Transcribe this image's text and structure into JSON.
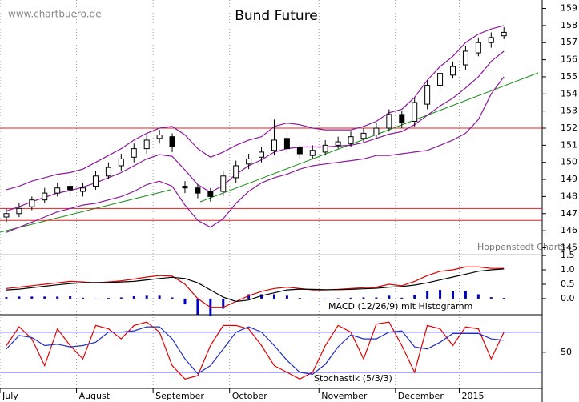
{
  "chart_data": [
    {
      "type": "candlestick",
      "title": "Bund Future",
      "annotations": [
        "www.chartbuero.de",
        "Hoppenstedt Charts"
      ],
      "categories": [
        "July",
        null,
        null,
        null,
        null,
        null,
        "August",
        null,
        null,
        null,
        null,
        null,
        "September",
        null,
        null,
        null,
        null,
        null,
        "October",
        null,
        null,
        null,
        null,
        null,
        null,
        "November",
        null,
        null,
        null,
        null,
        null,
        "December",
        null,
        null,
        null,
        null,
        "2015",
        null,
        null,
        null
      ],
      "open": [
        146.8,
        147.0,
        147.4,
        147.8,
        148.2,
        148.6,
        148.3,
        148.6,
        149.2,
        149.8,
        150.3,
        150.8,
        151.4,
        151.5,
        148.6,
        148.5,
        148.3,
        148.3,
        149.1,
        149.9,
        150.3,
        150.7,
        151.4,
        150.9,
        150.4,
        150.6,
        151.0,
        151.1,
        151.4,
        151.6,
        152.0,
        152.8,
        152.4,
        153.4,
        154.5,
        155.1,
        155.7,
        156.4,
        157.0,
        157.4
      ],
      "high": [
        147.3,
        147.6,
        148.0,
        148.5,
        148.8,
        148.9,
        148.8,
        149.5,
        150.0,
        150.5,
        151.1,
        151.6,
        151.9,
        151.7,
        148.9,
        148.7,
        148.5,
        149.5,
        150.1,
        150.5,
        150.9,
        152.5,
        151.7,
        151.0,
        151.0,
        151.3,
        151.5,
        151.8,
        152.0,
        152.3,
        153.1,
        153.0,
        153.8,
        154.8,
        155.5,
        155.9,
        156.8,
        157.3,
        157.6,
        157.9
      ],
      "low": [
        146.5,
        146.8,
        147.2,
        147.6,
        148.0,
        148.1,
        148.0,
        148.4,
        149.0,
        149.5,
        150.0,
        150.5,
        151.1,
        150.6,
        148.2,
        147.9,
        147.7,
        148.0,
        148.8,
        149.6,
        150.0,
        150.4,
        150.5,
        150.2,
        150.2,
        150.4,
        150.8,
        150.9,
        151.2,
        151.4,
        151.8,
        152.0,
        152.1,
        153.1,
        154.2,
        154.9,
        155.4,
        156.2,
        156.7,
        157.2
      ],
      "close": [
        147.0,
        147.3,
        147.8,
        148.2,
        148.5,
        148.4,
        148.5,
        149.2,
        149.7,
        150.2,
        150.8,
        151.3,
        151.6,
        150.9,
        148.5,
        148.2,
        148.0,
        149.2,
        149.8,
        150.2,
        150.6,
        151.3,
        150.8,
        150.5,
        150.7,
        151.0,
        151.2,
        151.5,
        151.7,
        152.0,
        152.8,
        152.3,
        153.5,
        154.5,
        155.2,
        155.6,
        156.5,
        157.0,
        157.3,
        157.6
      ],
      "bands": [
        {
          "color": "#8b1a9b",
          "values": [
            148.4,
            148.6,
            148.9,
            149.1,
            149.3,
            149.4,
            149.6,
            150.0,
            150.4,
            150.8,
            151.3,
            151.7,
            152.0,
            152.1,
            151.6,
            150.8,
            150.3,
            150.6,
            151.0,
            151.3,
            151.5,
            152.1,
            152.3,
            152.2,
            152.0,
            151.9,
            151.9,
            151.9,
            152.1,
            152.4,
            152.9,
            153.1,
            153.8,
            154.8,
            155.6,
            156.2,
            157.0,
            157.5,
            157.8,
            158.0
          ]
        },
        {
          "color": "#8b1a9b",
          "values": [
            147.15,
            147.4,
            147.7,
            147.95,
            148.2,
            148.35,
            148.55,
            148.8,
            149.1,
            149.4,
            149.8,
            150.2,
            150.45,
            150.35,
            149.55,
            148.7,
            148.25,
            148.65,
            149.3,
            149.8,
            150.15,
            150.6,
            150.8,
            150.9,
            150.9,
            150.9,
            150.95,
            151.0,
            151.15,
            151.4,
            151.65,
            151.8,
            152.2,
            152.75,
            153.3,
            153.75,
            154.35,
            155.0,
            155.9,
            156.5
          ]
        },
        {
          "color": "#8b1a9b",
          "values": [
            145.9,
            146.2,
            146.5,
            146.8,
            147.1,
            147.3,
            147.5,
            147.6,
            147.8,
            148.0,
            148.3,
            148.7,
            148.9,
            148.6,
            147.5,
            146.6,
            146.2,
            146.7,
            147.6,
            148.3,
            148.8,
            149.1,
            149.3,
            149.6,
            149.8,
            149.9,
            150.0,
            150.1,
            150.2,
            150.4,
            150.4,
            150.5,
            150.6,
            150.7,
            151.0,
            151.3,
            151.7,
            152.5,
            154.0,
            155.0
          ]
        }
      ],
      "hlines": [
        152.0,
        147.3,
        146.6
      ],
      "hline_color": "#e02020",
      "ylim": [
        144.6,
        159.4
      ],
      "yticks": [
        145,
        146,
        147,
        148,
        149,
        150,
        151,
        152,
        153,
        154,
        155,
        156,
        157,
        158,
        159
      ]
    },
    {
      "type": "macd",
      "label": "MACD (12/26/9) mit Histogramm",
      "series": [
        {
          "color": "#e00000",
          "values": [
            0.35,
            0.4,
            0.45,
            0.5,
            0.55,
            0.6,
            0.58,
            0.55,
            0.58,
            0.62,
            0.68,
            0.75,
            0.8,
            0.78,
            0.5,
            0.0,
            -0.3,
            -0.3,
            -0.1,
            0.1,
            0.25,
            0.35,
            0.4,
            0.35,
            0.3,
            0.3,
            0.32,
            0.35,
            0.38,
            0.4,
            0.5,
            0.45,
            0.6,
            0.8,
            0.95,
            1.0,
            1.1,
            1.1,
            1.05,
            1.05
          ]
        },
        {
          "color": "#000000",
          "values": [
            0.3,
            0.33,
            0.38,
            0.43,
            0.48,
            0.52,
            0.55,
            0.56,
            0.56,
            0.58,
            0.6,
            0.65,
            0.7,
            0.74,
            0.7,
            0.55,
            0.3,
            0.05,
            -0.1,
            -0.05,
            0.1,
            0.2,
            0.3,
            0.33,
            0.32,
            0.31,
            0.31,
            0.32,
            0.34,
            0.36,
            0.4,
            0.42,
            0.47,
            0.55,
            0.65,
            0.75,
            0.85,
            0.95,
            1.0,
            1.03
          ]
        }
      ],
      "histogram": {
        "color": "#0000c0",
        "values": [
          0.05,
          0.07,
          0.07,
          0.07,
          0.07,
          0.08,
          0.03,
          -0.01,
          0.02,
          0.04,
          0.08,
          0.1,
          0.1,
          0.04,
          -0.2,
          -0.55,
          -0.6,
          -0.35,
          0,
          0.15,
          0.15,
          0.15,
          0.1,
          0.02,
          -0.02,
          -0.01,
          0.01,
          0.03,
          0.04,
          0.04,
          0.1,
          0.03,
          0.13,
          0.25,
          0.3,
          0.25,
          0.25,
          0.15,
          0.05,
          0.02
        ]
      },
      "ylim": [
        -0.56,
        1.53
      ],
      "yticks": [
        {
          "value": 0,
          "label": "0.0"
        },
        0.5,
        {
          "value": 1,
          "label": "1.0"
        },
        1.5
      ]
    },
    {
      "type": "stochastic",
      "label": "Stochastik (5/3/3)",
      "series": [
        {
          "color": "#e00000",
          "values": [
            60,
            88,
            70,
            30,
            85,
            60,
            40,
            90,
            85,
            70,
            90,
            95,
            80,
            30,
            10,
            15,
            60,
            90,
            90,
            85,
            60,
            30,
            20,
            10,
            20,
            60,
            90,
            80,
            40,
            92,
            95,
            60,
            20,
            90,
            85,
            60,
            88,
            85,
            40,
            80
          ]
        },
        {
          "color": "#2030c0",
          "values": [
            55,
            75,
            72,
            60,
            62,
            58,
            60,
            65,
            80,
            80,
            82,
            88,
            88,
            70,
            40,
            18,
            30,
            55,
            80,
            88,
            80,
            60,
            38,
            20,
            17,
            32,
            58,
            76,
            70,
            70,
            80,
            82,
            58,
            55,
            65,
            78,
            78,
            78,
            70,
            68
          ]
        }
      ],
      "hlines": [
        80,
        20
      ],
      "hline_color": "#2020c0",
      "ylim": [
        -4,
        106
      ],
      "yticks": [
        50
      ]
    }
  ]
}
